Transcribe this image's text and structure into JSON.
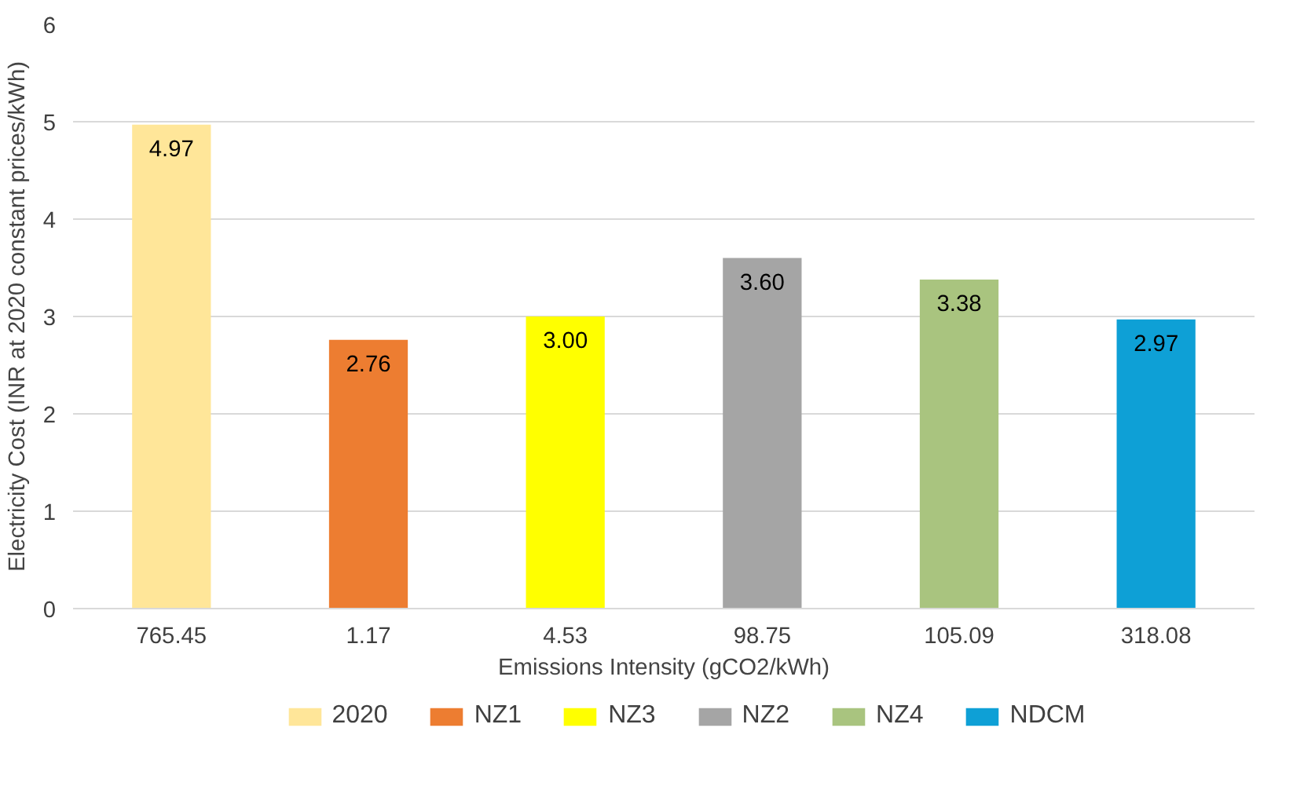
{
  "chart_data": {
    "type": "bar",
    "xlabel": "Emissions Intensity (gCO2/kWh)",
    "ylabel": "Electricity Cost (INR at 2020 constant prices/kWh)",
    "categories": [
      "765.45",
      "1.17",
      "4.53",
      "98.75",
      "105.09",
      "318.08"
    ],
    "series": [
      {
        "name": "2020",
        "color": "#ffe699",
        "values": [
          4.97,
          null,
          null,
          null,
          null,
          null
        ]
      },
      {
        "name": "NZ1",
        "color": "#ed7d31",
        "values": [
          null,
          2.76,
          null,
          null,
          null,
          null
        ]
      },
      {
        "name": "NZ3",
        "color": "#ffff00",
        "values": [
          null,
          null,
          3.0,
          null,
          null,
          null
        ]
      },
      {
        "name": "NZ2",
        "color": "#a5a5a5",
        "values": [
          null,
          null,
          null,
          3.6,
          null,
          null
        ]
      },
      {
        "name": "NZ4",
        "color": "#a9c47f",
        "values": [
          null,
          null,
          null,
          null,
          3.38,
          null
        ]
      },
      {
        "name": "NDCM",
        "color": "#0ea0d6",
        "values": [
          null,
          null,
          null,
          null,
          null,
          2.97
        ]
      }
    ],
    "value_labels": [
      "4.97",
      "2.76",
      "3.00",
      "3.60",
      "3.38",
      "2.97"
    ],
    "ylim": [
      0,
      6
    ],
    "yticks": [
      0,
      1,
      2,
      3,
      4,
      5,
      6
    ],
    "grid": "y",
    "legend": "bottom"
  }
}
